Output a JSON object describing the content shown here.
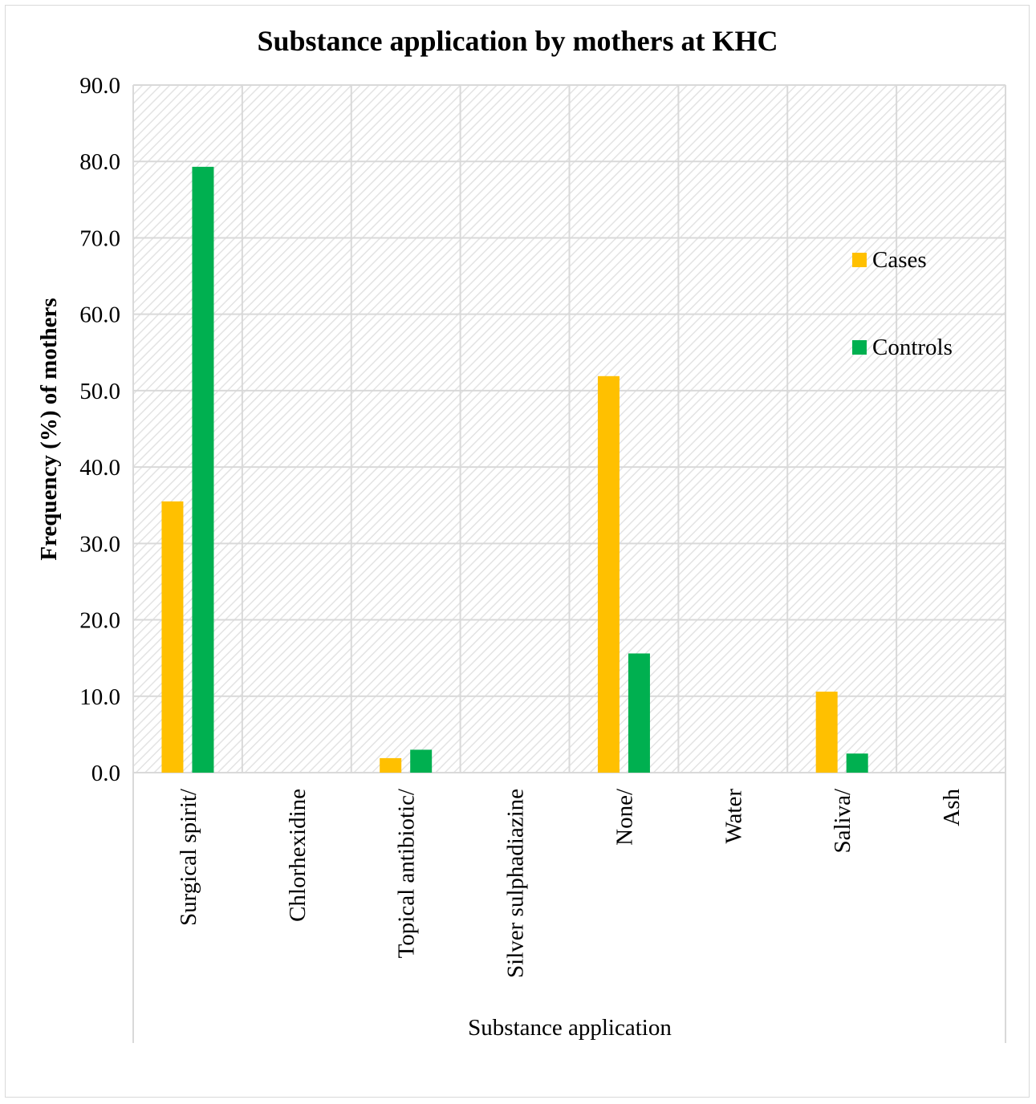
{
  "chart_data": {
    "type": "bar",
    "title": "Substance application by mothers at KHC",
    "xlabel": "Substance application",
    "ylabel": "Frequency (%) of mothers",
    "categories": [
      "Surgical spirit/",
      "Chlorhexidine",
      "Topical antibiotic/",
      "Silver sulphadiazine",
      "None/",
      "Water",
      "Saliva/",
      "Ash"
    ],
    "series": [
      {
        "name": "Cases",
        "color": "#FFC000",
        "values": [
          35.5,
          0.0,
          1.9,
          0.0,
          51.9,
          0.0,
          10.6,
          0.0
        ]
      },
      {
        "name": "Controls",
        "color": "#00B050",
        "values": [
          79.3,
          0.0,
          3.0,
          0.0,
          15.6,
          0.0,
          2.5,
          0.0
        ]
      }
    ],
    "ylim": [
      0,
      90
    ],
    "yticks": [
      "0.0",
      "10.0",
      "20.0",
      "30.0",
      "40.0",
      "50.0",
      "60.0",
      "70.0",
      "80.0",
      "90.0"
    ],
    "grid": true,
    "legend_position": "right"
  }
}
